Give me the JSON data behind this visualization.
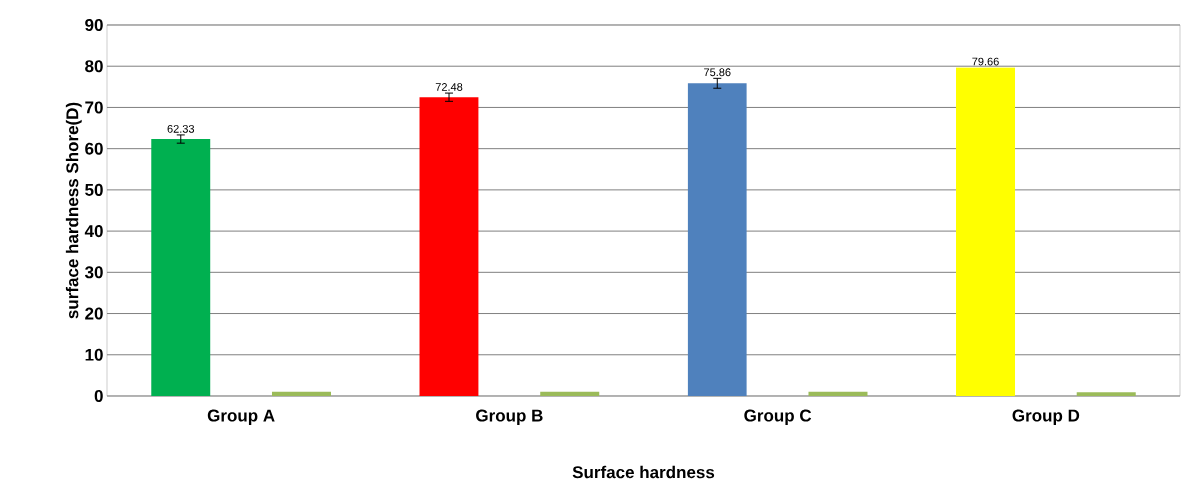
{
  "chart_data": {
    "type": "bar",
    "xlabel": "Surface hardness",
    "ylabel": "surface hardness Shore(D)",
    "categories": [
      "Group A",
      "Group B",
      "Group C",
      "Group D"
    ],
    "series": [
      {
        "colors": [
          "#00b050",
          "#ff0000",
          "#4f81bd",
          "#ffff00"
        ],
        "values": [
          62.33,
          72.48,
          75.86,
          79.66
        ],
        "errors": [
          1,
          1,
          1.2,
          null
        ],
        "value_labels": [
          "62.33",
          "72.48",
          "75.86",
          "79.66"
        ]
      },
      {
        "color": "#9bbb59",
        "values": [
          1.1,
          1.1,
          1.1,
          0.9
        ]
      }
    ],
    "ylim": [
      0,
      90
    ],
    "yticks": [
      0,
      10,
      20,
      30,
      40,
      50,
      60,
      70,
      80,
      90
    ],
    "grid": "y"
  }
}
